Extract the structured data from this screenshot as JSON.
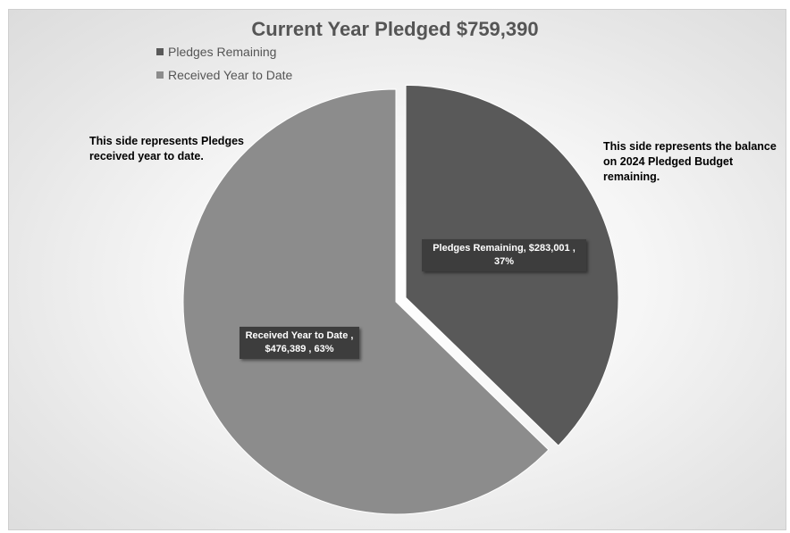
{
  "chart_data": {
    "type": "pie",
    "title": "Current Year Pledged $759,390",
    "legend_position": "top-left",
    "slices": [
      {
        "name": "Pledges Remaining",
        "value": 283001,
        "value_label": "$283,001",
        "percent_label": "37%",
        "color": "#595959",
        "exploded": true
      },
      {
        "name": "Received Year to Date",
        "value": 476389,
        "value_label": "$476,389",
        "percent_label": "63%",
        "color": "#8c8c8c",
        "exploded": false
      }
    ],
    "data_labels": [
      {
        "line1": "Pledges Remaining, $283,001 ,",
        "line2": "37%"
      },
      {
        "line1": "Received Year to Date ,",
        "line2": "$476,389 , 63%"
      }
    ],
    "annotations": {
      "left": {
        "line1": "This side represents Pledges",
        "line2": "received year to date."
      },
      "right": {
        "line1": "This side represents the balance",
        "line2": "on 2024 Pledged Budget",
        "line3": "remaining."
      }
    }
  }
}
